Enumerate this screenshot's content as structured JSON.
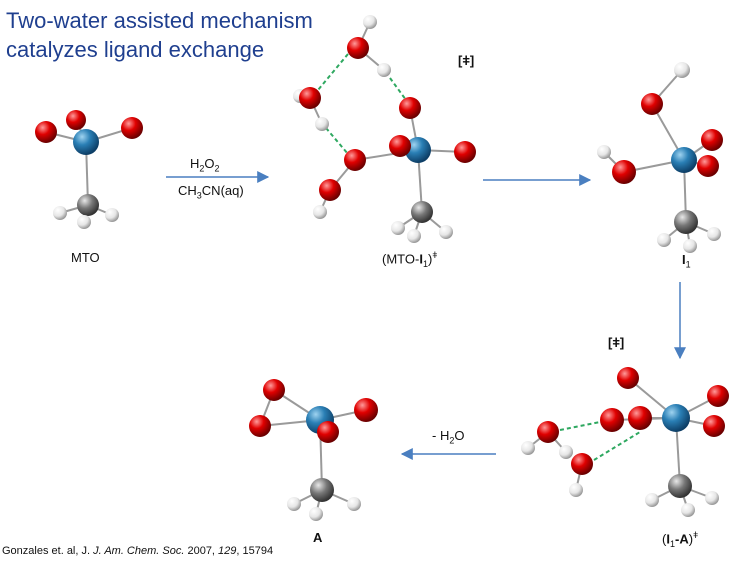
{
  "title": {
    "line1": "Two-water assisted mechanism",
    "line2": "catalyzes ligand exchange"
  },
  "labels": {
    "mto": "MTO",
    "mto_i1": {
      "prefix": "(MTO-",
      "bold": "I",
      "sub": "1",
      "suffix": ")",
      "sup": "ǂ"
    },
    "i1": {
      "bold": "I",
      "sub": "1"
    },
    "i1_a": {
      "open": "(",
      "bold1": "I",
      "sub": "1",
      "bold2": "-A",
      "close": ")",
      "sup": "ǂ"
    },
    "a": "A"
  },
  "arrows": {
    "arrow1": {
      "reagent_top": "H",
      "reagent_top_sub": "2",
      "reagent_top_mid": "O",
      "reagent_top_sub2": "2",
      "reagent_bottom": "CH",
      "reagent_bottom_sub": "3",
      "reagent_bottom_rest": "CN(aq)"
    },
    "arrow4": {
      "prefix": "- H",
      "sub": "2",
      "suffix": "O"
    }
  },
  "ts_markers": {
    "ts1": "[ǂ]",
    "ts2": "[ǂ]"
  },
  "citation": {
    "authors": "Gonzales et. al, J. ",
    "journal": "J. Am. Chem. Soc.",
    "year": " 2007, ",
    "volume": "129",
    "pages": ", 15794"
  },
  "colors": {
    "title": "#1f3f8f",
    "rhenium": "#2a7fb5",
    "oxygen": "#e00000",
    "carbon": "#777777",
    "hydrogen": "#eeeeee",
    "arrow": "#4a7fc0",
    "hbond": "#2ea860"
  }
}
